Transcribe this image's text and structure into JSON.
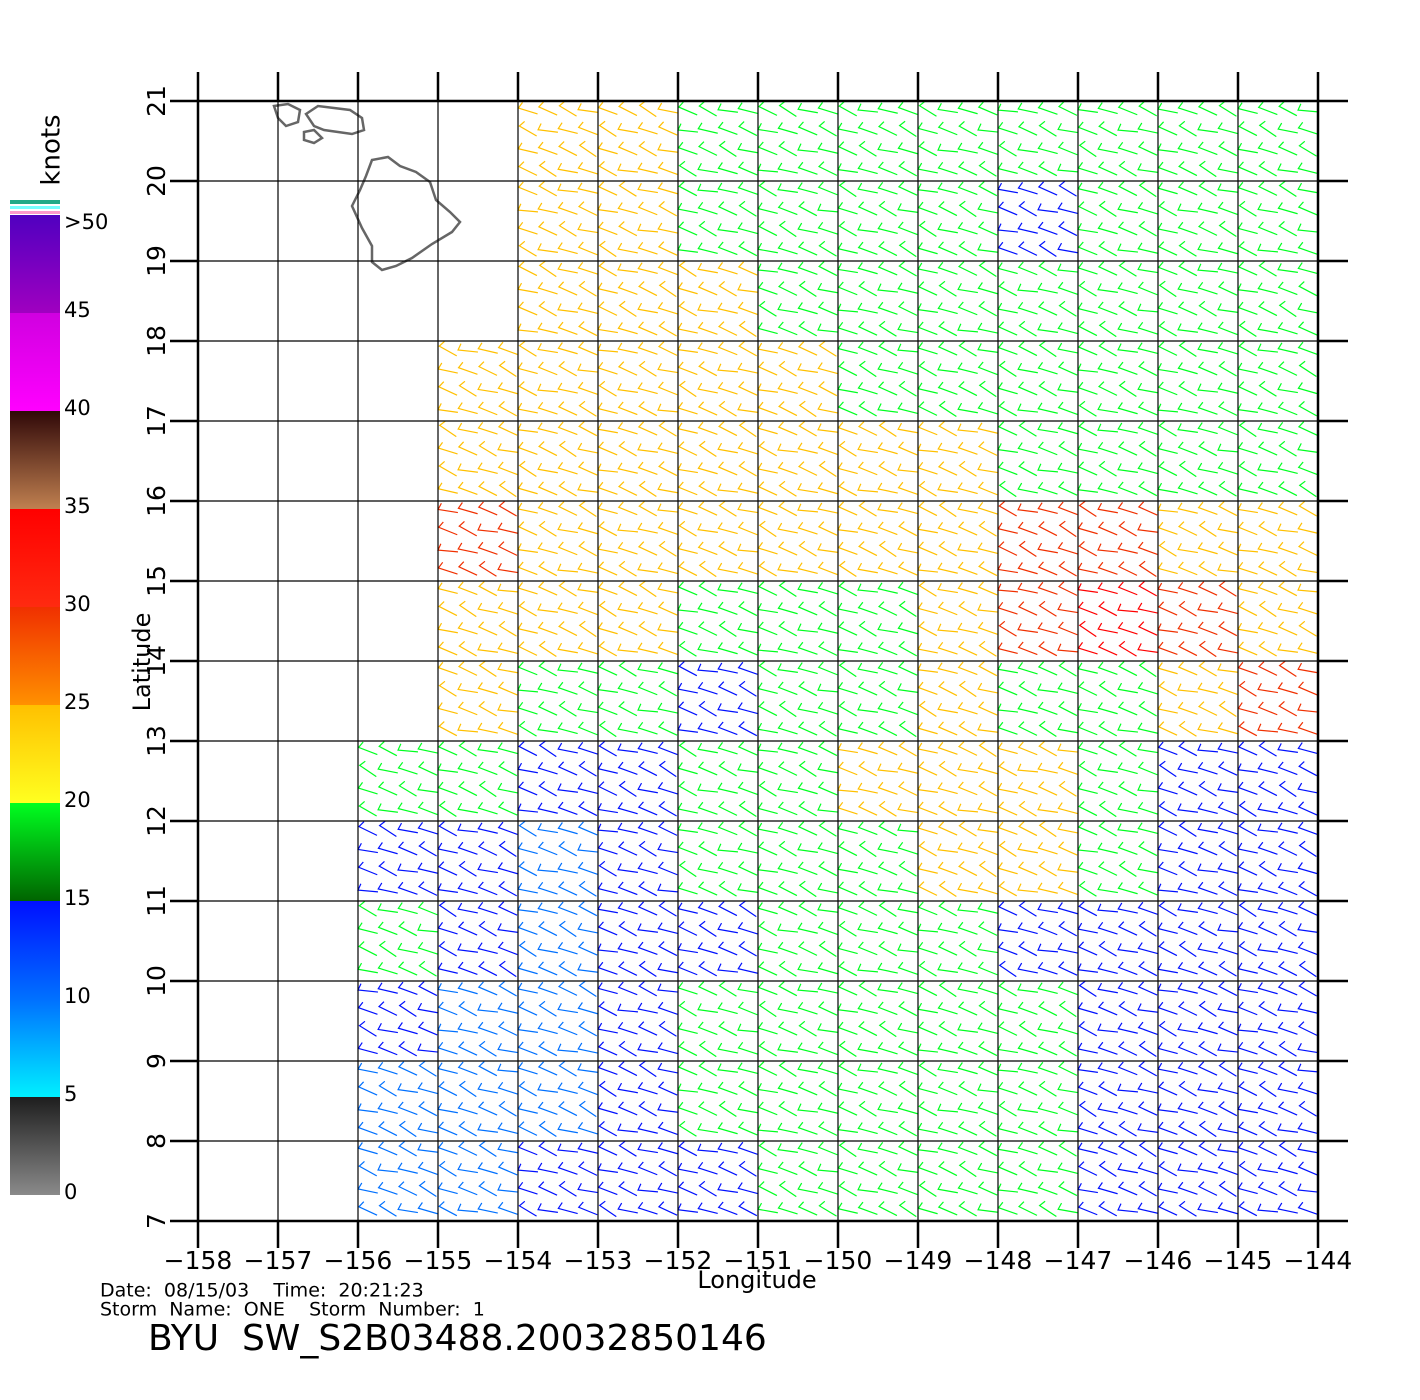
{
  "chart_data": {
    "type": "wind-barb",
    "xlabel": "Longitude",
    "ylabel": "Latitude",
    "xlim": [
      -158,
      -144
    ],
    "ylim": [
      7,
      21
    ],
    "xticks": [
      {
        "value": -158,
        "label": "−158"
      },
      {
        "value": -157,
        "label": "−157"
      },
      {
        "value": -156,
        "label": "−156"
      },
      {
        "value": -155,
        "label": "−155"
      },
      {
        "value": -154,
        "label": "−154"
      },
      {
        "value": -153,
        "label": "−153"
      },
      {
        "value": -152,
        "label": "−152"
      },
      {
        "value": -151,
        "label": "−151"
      },
      {
        "value": -150,
        "label": "−150"
      },
      {
        "value": -149,
        "label": "−149"
      },
      {
        "value": -148,
        "label": "−148"
      },
      {
        "value": -147,
        "label": "−147"
      },
      {
        "value": -146,
        "label": "−146"
      },
      {
        "value": -145,
        "label": "−145"
      },
      {
        "value": -144,
        "label": "−144"
      }
    ],
    "yticks": [
      7,
      8,
      9,
      10,
      11,
      12,
      13,
      14,
      15,
      16,
      17,
      18,
      19,
      20,
      21
    ],
    "grid": true,
    "lat": [
      20.5,
      19.5,
      18.5,
      17.5,
      16.5,
      15.5,
      14.5,
      13.5,
      12.5,
      11.5,
      10.5,
      9.5,
      8.5,
      7.5
    ],
    "lon": [
      -157.5,
      -156.5,
      -155.5,
      -154.5,
      -153.5,
      -152.5,
      -151.5,
      -150.5,
      -149.5,
      -148.5,
      -147.5,
      -146.5,
      -145.5,
      -144.5
    ],
    "speed": [
      [
        null,
        null,
        null,
        null,
        22,
        22,
        18,
        17,
        16,
        15,
        15,
        17,
        17,
        18
      ],
      [
        null,
        null,
        null,
        null,
        22,
        21,
        19,
        17,
        17,
        15,
        14,
        16,
        17,
        18
      ],
      [
        null,
        null,
        null,
        null,
        23,
        21,
        20,
        19,
        17,
        15,
        15,
        16,
        17,
        17
      ],
      [
        null,
        null,
        null,
        23,
        22,
        21,
        21,
        20,
        18,
        17,
        16,
        16,
        17,
        17
      ],
      [
        null,
        null,
        null,
        24,
        23,
        22,
        22,
        21,
        21,
        20,
        18,
        16,
        16,
        17
      ],
      [
        null,
        null,
        null,
        25,
        24,
        23,
        22,
        21,
        22,
        24,
        27,
        26,
        24,
        20
      ],
      [
        null,
        null,
        null,
        24,
        23,
        21,
        17,
        15,
        19,
        23,
        27,
        30,
        28,
        22
      ],
      [
        null,
        null,
        null,
        20,
        19,
        16,
        14,
        16,
        19,
        21,
        18,
        19,
        22,
        25
      ],
      [
        null,
        null,
        17,
        16,
        14,
        13,
        15,
        18,
        20,
        22,
        21,
        17,
        14,
        13
      ],
      [
        null,
        null,
        14,
        11,
        9,
        13,
        16,
        18,
        19,
        24,
        20,
        15,
        12,
        12
      ],
      [
        null,
        null,
        15,
        10,
        8,
        12,
        14,
        17,
        17,
        15,
        14,
        13,
        12,
        12
      ],
      [
        null,
        null,
        12,
        8,
        8,
        12,
        15,
        19,
        16,
        15,
        16,
        14,
        13,
        13
      ],
      [
        null,
        null,
        9,
        8,
        9,
        13,
        16,
        18,
        18,
        17,
        16,
        14,
        13,
        13
      ],
      [
        null,
        null,
        8,
        9,
        10,
        13,
        14,
        15,
        17,
        17,
        16,
        14,
        13,
        13
      ]
    ],
    "colorbar": {
      "title": "knots",
      "lim": [
        0,
        50
      ],
      "ticks": [
        0,
        5,
        10,
        15,
        20,
        25,
        30,
        35,
        40,
        45,
        {
          "value": 50,
          "label": ">50"
        }
      ],
      "bands": [
        {
          "from": 0,
          "to": 5,
          "colors": [
            "#8a8a8a",
            "#1e1e1e"
          ]
        },
        {
          "from": 5,
          "to": 10,
          "colors": [
            "#00f0ff",
            "#0070ff"
          ]
        },
        {
          "from": 10,
          "to": 15,
          "colors": [
            "#0070ff",
            "#0010ff"
          ]
        },
        {
          "from": 15,
          "to": 20,
          "colors": [
            "#006400",
            "#00ff20"
          ]
        },
        {
          "from": 20,
          "to": 25,
          "colors": [
            "#ffff20",
            "#ffc000"
          ]
        },
        {
          "from": 25,
          "to": 30,
          "colors": [
            "#ff9000",
            "#f03000"
          ]
        },
        {
          "from": 30,
          "to": 35,
          "colors": [
            "#ff2a10",
            "#ff0000"
          ]
        },
        {
          "from": 35,
          "to": 40,
          "colors": [
            "#c08050",
            "#300808"
          ]
        },
        {
          "from": 40,
          "to": 45,
          "colors": [
            "#ff00ff",
            "#d000e0"
          ]
        },
        {
          "from": 45,
          "to": 50,
          "colors": [
            "#a000c0",
            "#5000c0"
          ]
        }
      ]
    },
    "footer": {
      "line1": "Date:  08/15/03    Time:  20:21:23",
      "line2": "Storm  Name:  ONE    Storm  Number:  1",
      "product": "BYU  SW_S2B03488.20032850146"
    }
  }
}
